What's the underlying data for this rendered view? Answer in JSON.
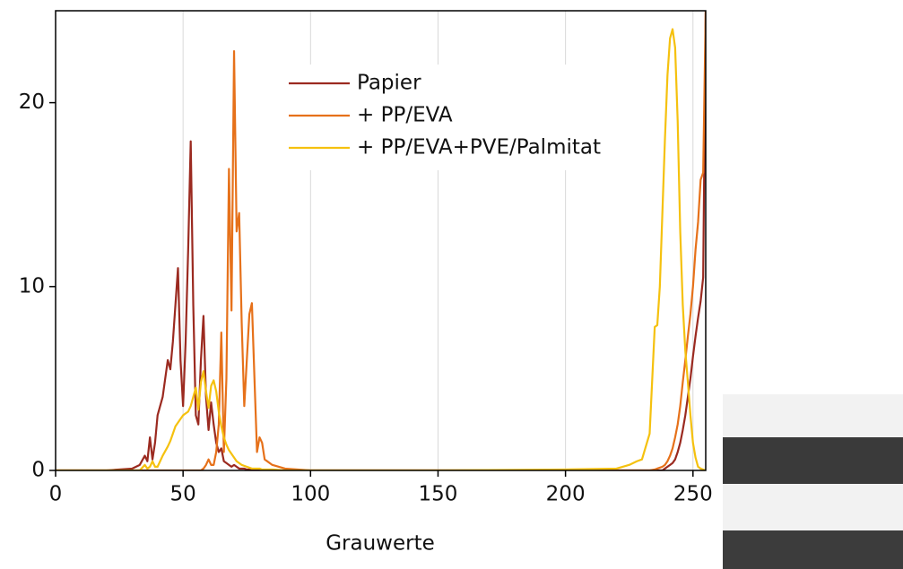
{
  "chart_data": {
    "type": "line",
    "xlabel": "Grauwerte",
    "x": [
      0,
      20,
      30,
      33,
      35,
      36,
      37,
      38,
      39,
      40,
      42,
      44,
      45,
      46,
      47,
      48,
      49,
      50,
      51,
      52,
      53,
      54,
      55,
      56,
      57,
      58,
      59,
      60,
      61,
      62,
      63,
      64,
      65,
      66,
      67,
      68,
      69,
      70,
      71,
      72,
      73,
      74,
      75,
      76,
      77,
      78,
      79,
      80,
      81,
      82,
      85,
      90,
      100,
      150,
      200,
      220,
      225,
      228,
      230,
      233,
      235,
      236,
      237,
      238,
      239,
      240,
      241,
      242,
      243,
      244,
      245,
      246,
      247,
      248,
      249,
      250,
      251,
      252,
      253,
      254,
      255
    ],
    "series": [
      {
        "name": "Papier",
        "color": "#9b2a20",
        "values": [
          0,
          0,
          0.1,
          0.3,
          0.8,
          0.5,
          1.8,
          0.6,
          1.5,
          3,
          4,
          6,
          5.5,
          7,
          9,
          11,
          6,
          3.5,
          7,
          12,
          17.9,
          9,
          3,
          2.5,
          6,
          8.4,
          4,
          2.2,
          3.7,
          2.5,
          1.5,
          1,
          1.2,
          0.5,
          0.4,
          0.3,
          0.2,
          0.3,
          0.2,
          0.1,
          0.1,
          0.1,
          0.05,
          0.05,
          0.05,
          0.05,
          0,
          0,
          0,
          0,
          0,
          0,
          0,
          0,
          0,
          0,
          0,
          0,
          0,
          0,
          0,
          0,
          0,
          0,
          0.1,
          0.2,
          0.3,
          0.4,
          0.6,
          1,
          1.5,
          2.2,
          3,
          4,
          5,
          6.2,
          7.3,
          8.3,
          9.2,
          10.5,
          25
        ]
      },
      {
        "name": "+ PP/EVA",
        "color": "#e6711a",
        "values": [
          0,
          0,
          0,
          0,
          0,
          0,
          0,
          0,
          0,
          0,
          0,
          0,
          0,
          0,
          0,
          0,
          0,
          0,
          0,
          0,
          0,
          0,
          0,
          0,
          0,
          0.1,
          0.3,
          0.6,
          0.3,
          0.3,
          1,
          2.5,
          7.5,
          1,
          5,
          16.4,
          8.7,
          22.8,
          13,
          14,
          8,
          3.5,
          6,
          8.5,
          9.1,
          5,
          1,
          1.8,
          1.5,
          0.6,
          0.3,
          0.1,
          0,
          0,
          0,
          0,
          0,
          0,
          0,
          0,
          0.05,
          0.1,
          0.15,
          0.2,
          0.3,
          0.5,
          0.8,
          1.2,
          1.8,
          2.5,
          3.5,
          4.8,
          6,
          7.3,
          8.5,
          10,
          12,
          13.5,
          15.8,
          16.2,
          25
        ]
      },
      {
        "name": "+ PP/EVA+PVE/Palmitat",
        "color": "#f5c10f",
        "values": [
          0,
          0,
          0,
          0,
          0.3,
          0.1,
          0.2,
          0.5,
          0.2,
          0.2,
          0.8,
          1.3,
          1.6,
          2,
          2.4,
          2.6,
          2.8,
          3,
          3.1,
          3.2,
          3.5,
          4,
          4.5,
          3.3,
          4.8,
          5.4,
          4.3,
          3.4,
          4.6,
          4.9,
          4.3,
          3.2,
          2.4,
          1.8,
          1.4,
          1.1,
          0.9,
          0.7,
          0.5,
          0.4,
          0.3,
          0.25,
          0.2,
          0.15,
          0.1,
          0.1,
          0.1,
          0.1,
          0.05,
          0.05,
          0.05,
          0,
          0,
          0,
          0.05,
          0.1,
          0.3,
          0.5,
          0.6,
          2,
          7.8,
          7.9,
          10,
          14,
          18,
          21.5,
          23.5,
          24,
          23,
          19,
          13,
          9,
          6.5,
          4.8,
          3,
          1.5,
          0.7,
          0.2,
          0.1,
          0.05,
          0
        ]
      }
    ],
    "xlim": [
      0,
      255
    ],
    "ylim": [
      0,
      25
    ],
    "xticks": [
      0,
      50,
      100,
      150,
      200,
      250
    ],
    "yticks": [
      0,
      10,
      20
    ],
    "grid": true,
    "legend": "top"
  }
}
